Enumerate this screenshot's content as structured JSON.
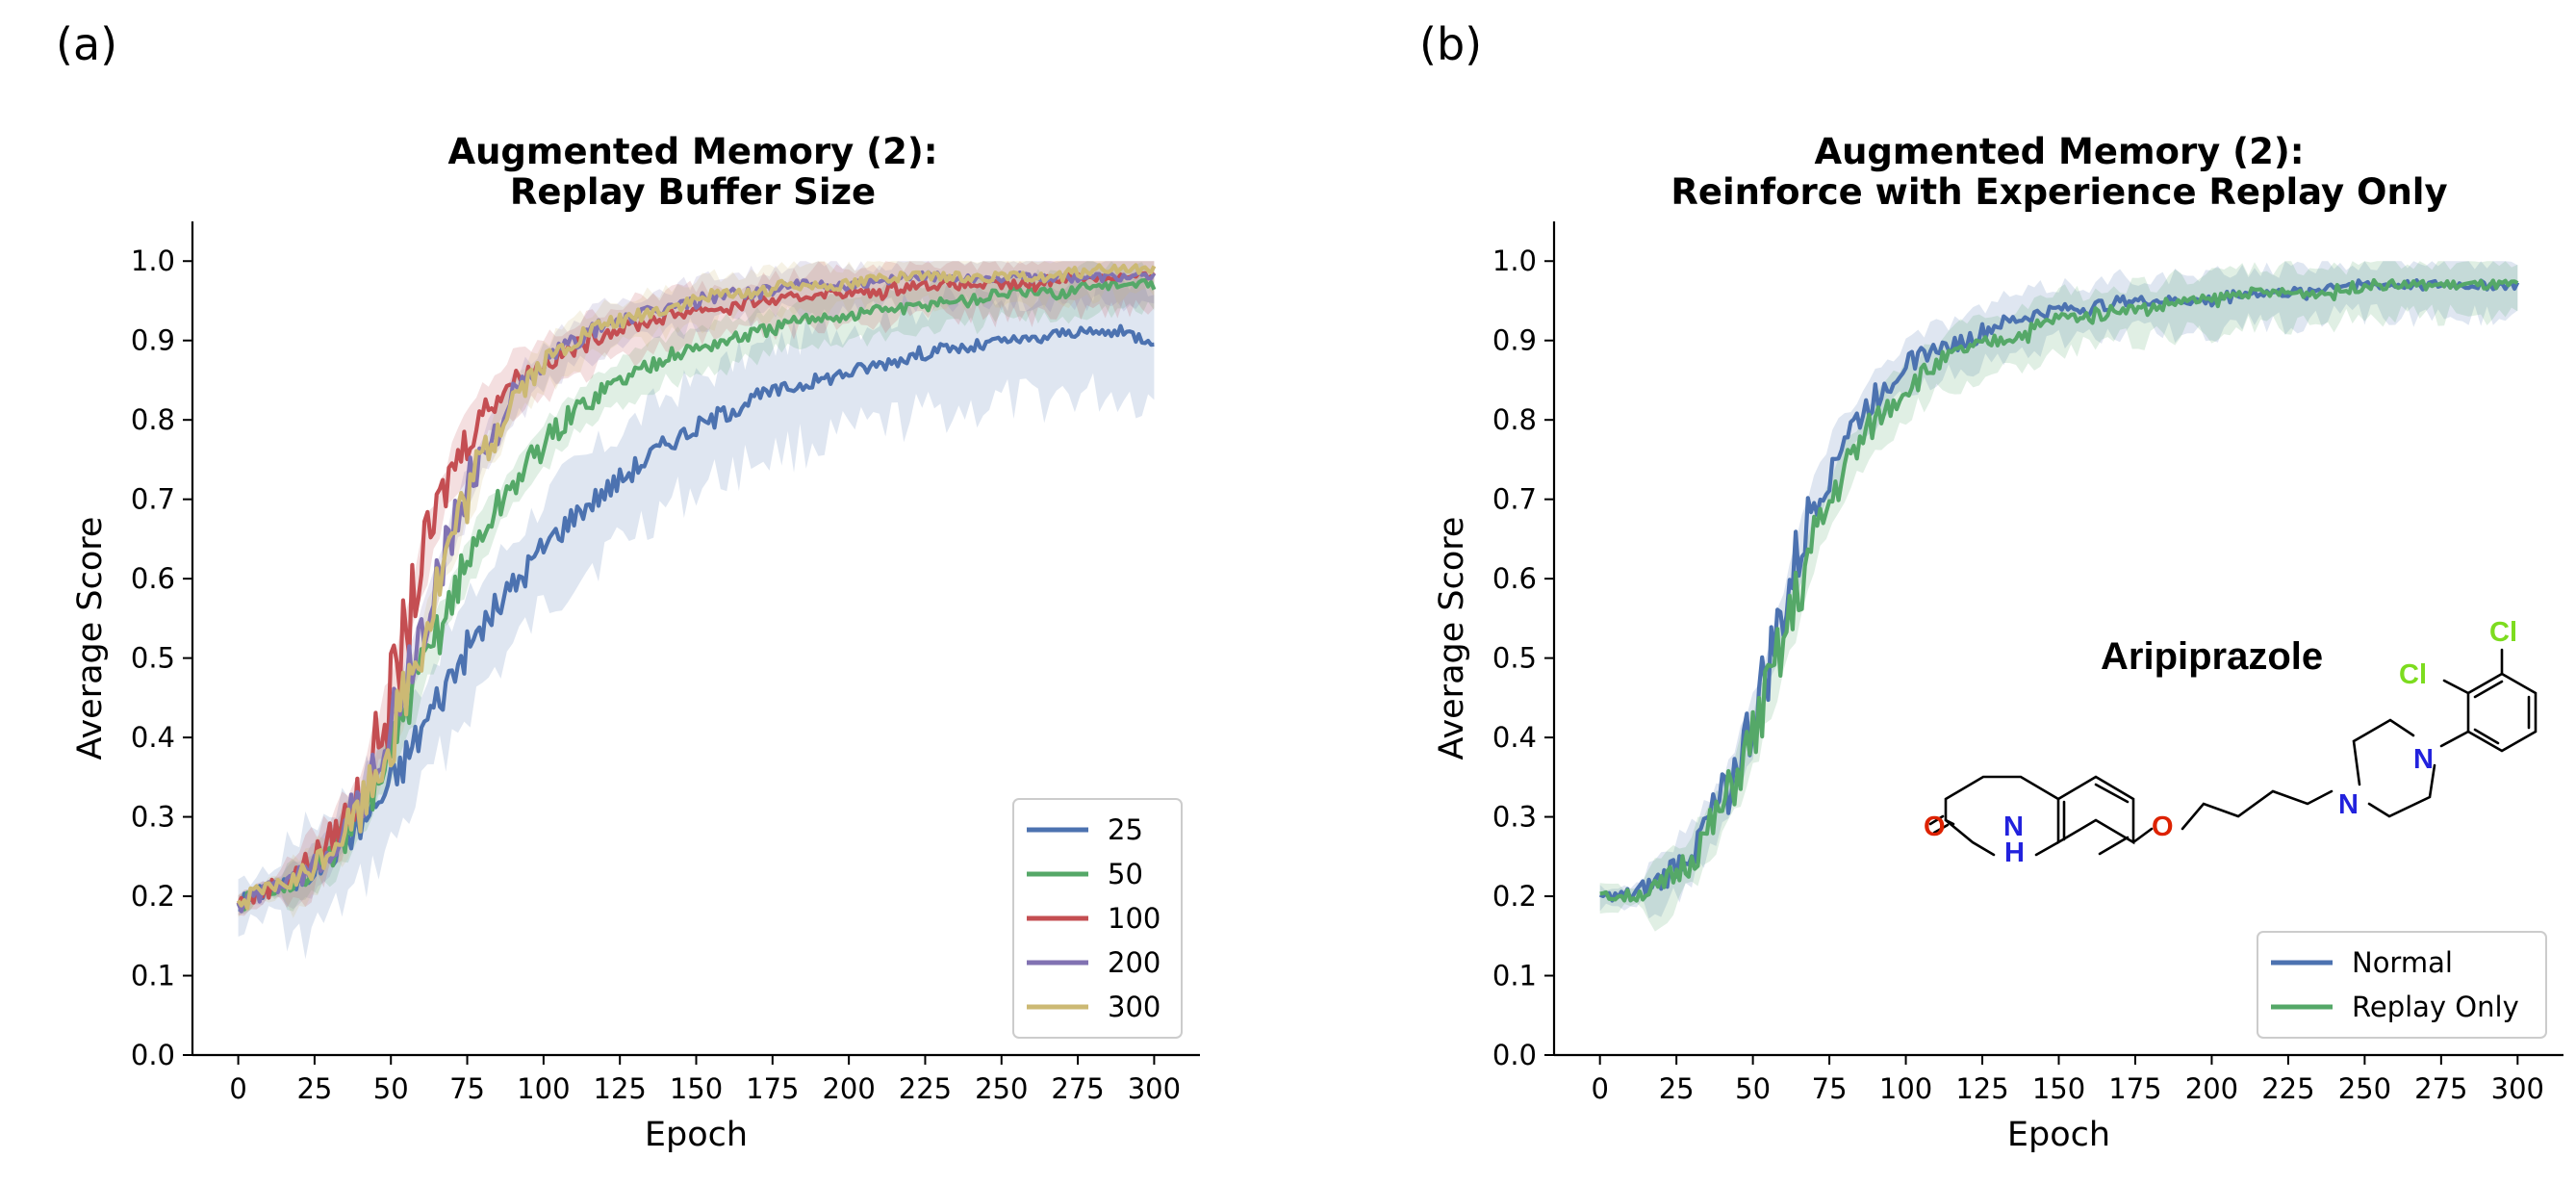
{
  "panels": {
    "a": {
      "label": "(a)"
    },
    "b": {
      "label": "(b)"
    }
  },
  "chart_data": [
    {
      "type": "line",
      "title": "Augmented Memory (2):\nReplay Buffer Size",
      "title_lines": [
        "Augmented Memory (2):",
        "Replay Buffer Size"
      ],
      "xlabel": "Epoch",
      "ylabel": "Average Score",
      "xlim": [
        -15,
        315
      ],
      "ylim": [
        0.0,
        1.05
      ],
      "xticks": [
        0,
        25,
        50,
        75,
        100,
        125,
        150,
        175,
        200,
        225,
        250,
        275,
        300
      ],
      "yticks": [
        0.0,
        0.1,
        0.2,
        0.3,
        0.4,
        0.5,
        0.6,
        0.7,
        0.8,
        0.9,
        1.0
      ],
      "legend_position": "lower-right",
      "shaded_band": "variability across runs (approx.)",
      "x": [
        0,
        10,
        20,
        30,
        40,
        50,
        60,
        70,
        80,
        90,
        100,
        110,
        120,
        130,
        140,
        150,
        160,
        170,
        180,
        190,
        200,
        210,
        220,
        230,
        240,
        250,
        260,
        270,
        280,
        290,
        300
      ],
      "series": [
        {
          "name": "25",
          "color": "#4c72b0",
          "values": [
            0.19,
            0.21,
            0.22,
            0.25,
            0.29,
            0.34,
            0.41,
            0.48,
            0.54,
            0.59,
            0.64,
            0.68,
            0.71,
            0.74,
            0.77,
            0.79,
            0.81,
            0.83,
            0.84,
            0.85,
            0.86,
            0.87,
            0.88,
            0.89,
            0.89,
            0.9,
            0.9,
            0.91,
            0.91,
            0.91,
            0.9
          ],
          "band": 0.06
        },
        {
          "name": "50",
          "color": "#55a868",
          "values": [
            0.19,
            0.21,
            0.22,
            0.25,
            0.3,
            0.38,
            0.48,
            0.58,
            0.66,
            0.72,
            0.77,
            0.81,
            0.84,
            0.86,
            0.88,
            0.89,
            0.9,
            0.91,
            0.92,
            0.93,
            0.93,
            0.94,
            0.94,
            0.95,
            0.95,
            0.96,
            0.96,
            0.96,
            0.97,
            0.97,
            0.97
          ],
          "band": 0.025
        },
        {
          "name": "100",
          "color": "#c44e52",
          "values": [
            0.19,
            0.21,
            0.23,
            0.27,
            0.33,
            0.45,
            0.62,
            0.74,
            0.81,
            0.85,
            0.87,
            0.89,
            0.91,
            0.92,
            0.93,
            0.94,
            0.94,
            0.95,
            0.95,
            0.96,
            0.96,
            0.96,
            0.97,
            0.97,
            0.97,
            0.97,
            0.97,
            0.98,
            0.98,
            0.98,
            0.98
          ],
          "band": 0.03
        },
        {
          "name": "200",
          "color": "#8172b2",
          "values": [
            0.19,
            0.21,
            0.22,
            0.26,
            0.32,
            0.41,
            0.53,
            0.66,
            0.76,
            0.83,
            0.87,
            0.9,
            0.92,
            0.93,
            0.94,
            0.95,
            0.96,
            0.96,
            0.97,
            0.97,
            0.97,
            0.97,
            0.98,
            0.98,
            0.98,
            0.98,
            0.98,
            0.98,
            0.98,
            0.98,
            0.98
          ],
          "band": 0.025
        },
        {
          "name": "300",
          "color": "#ccb974",
          "values": [
            0.19,
            0.21,
            0.22,
            0.26,
            0.31,
            0.4,
            0.52,
            0.65,
            0.75,
            0.83,
            0.87,
            0.9,
            0.92,
            0.93,
            0.94,
            0.95,
            0.96,
            0.96,
            0.97,
            0.97,
            0.97,
            0.98,
            0.98,
            0.98,
            0.98,
            0.98,
            0.98,
            0.98,
            0.99,
            0.99,
            0.99
          ],
          "band": 0.025
        }
      ]
    },
    {
      "type": "line",
      "title": "Augmented Memory (2):\nReinforce with Experience Replay Only",
      "title_lines": [
        "Augmented Memory (2):",
        "Reinforce with Experience Replay Only"
      ],
      "xlabel": "Epoch",
      "ylabel": "Average Score",
      "xlim": [
        -15,
        315
      ],
      "ylim": [
        0.0,
        1.05
      ],
      "xticks": [
        0,
        25,
        50,
        75,
        100,
        125,
        150,
        175,
        200,
        225,
        250,
        275,
        300
      ],
      "yticks": [
        0.0,
        0.1,
        0.2,
        0.3,
        0.4,
        0.5,
        0.6,
        0.7,
        0.8,
        0.9,
        1.0
      ],
      "legend_position": "lower-right",
      "shaded_band": "variability across runs (approx.)",
      "x": [
        0,
        10,
        20,
        30,
        40,
        50,
        60,
        70,
        80,
        90,
        100,
        110,
        120,
        130,
        140,
        150,
        160,
        170,
        180,
        190,
        200,
        210,
        220,
        230,
        240,
        250,
        260,
        270,
        280,
        290,
        300
      ],
      "series": [
        {
          "name": "Normal",
          "color": "#4c72b0",
          "values": [
            0.2,
            0.2,
            0.22,
            0.26,
            0.32,
            0.42,
            0.56,
            0.7,
            0.78,
            0.83,
            0.87,
            0.89,
            0.9,
            0.92,
            0.93,
            0.94,
            0.94,
            0.95,
            0.95,
            0.95,
            0.95,
            0.96,
            0.96,
            0.96,
            0.97,
            0.97,
            0.97,
            0.97,
            0.97,
            0.97,
            0.97
          ],
          "band": 0.03
        },
        {
          "name": "Replay Only",
          "color": "#55a868",
          "values": [
            0.2,
            0.2,
            0.21,
            0.25,
            0.31,
            0.4,
            0.52,
            0.65,
            0.74,
            0.8,
            0.84,
            0.87,
            0.89,
            0.9,
            0.91,
            0.93,
            0.93,
            0.94,
            0.94,
            0.95,
            0.95,
            0.96,
            0.96,
            0.96,
            0.96,
            0.97,
            0.97,
            0.97,
            0.97,
            0.97,
            0.97
          ],
          "band": 0.03
        }
      ]
    }
  ],
  "molecule": {
    "name": "Aripiprazole",
    "atoms": {
      "cl": "Cl",
      "n": "N",
      "o": "O",
      "nh_n": "N",
      "nh_h": "H"
    },
    "colors": {
      "cl": "#7ddc1f",
      "n": "#2222dd",
      "o": "#dd2200"
    }
  }
}
